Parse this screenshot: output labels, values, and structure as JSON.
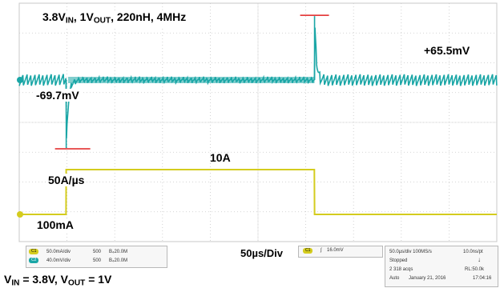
{
  "chart_data": {
    "type": "line",
    "title": "3.8VIN, 1VOUT, 220nH, 4MHz",
    "time_per_div_label": "50µs/Div",
    "x_unit": "µs",
    "x_range": [
      0,
      500
    ],
    "grid_divisions": {
      "x": 10,
      "y": 8
    },
    "series": [
      {
        "name": "C2",
        "color": "#1aa6a6",
        "description_points": [
          {
            "x": 0,
            "y": 0
          },
          {
            "x": 49,
            "y": 0
          },
          {
            "x": 49.5,
            "y": -69.7
          },
          {
            "x": 55,
            "y": -25
          },
          {
            "x": 60,
            "y": -5
          },
          {
            "x": 305,
            "y": -2
          },
          {
            "x": 311,
            "y": 65.5
          },
          {
            "x": 320,
            "y": 6
          },
          {
            "x": 500,
            "y": 0
          }
        ],
        "y_unit": "mV",
        "min_mV": -69.7,
        "max_mV": 65.5
      },
      {
        "name": "C1",
        "color": "#d4cc1e",
        "points": [
          {
            "x": 0,
            "y": 0.1
          },
          {
            "x": 49,
            "y": 0.1
          },
          {
            "x": 49.2,
            "y": 10
          },
          {
            "x": 309,
            "y": 10
          },
          {
            "x": 309.2,
            "y": 0.1
          },
          {
            "x": 500,
            "y": 0.1
          }
        ],
        "y_unit": "A",
        "low_A": 0.1,
        "high_A": 10,
        "slew_rate_A_per_us": 50
      }
    ],
    "annotations": {
      "title": "3.8VIN, 1VOUT, 220nH, 4MHz",
      "overshoot": "+65.5mV",
      "undershoot": "-69.7mV",
      "step_high": "10A",
      "slew": "50A/µs",
      "step_low": "100mA",
      "timebase": "50µs/Div",
      "conditions": "VIN = 3.8V, VOUT = 1V"
    }
  },
  "labels": {
    "title_parts": [
      "3.8V",
      "IN",
      ", 1V",
      "OUT",
      ", 220nH, 4MHz"
    ],
    "peak": "+65.5mV",
    "dip": "-69.7mV",
    "step_high": "10A",
    "slew": "50A/µs",
    "step_low": "100mA",
    "timebase": "50µs/Div",
    "cond_parts": [
      "V",
      "IN",
      " = 3.8V, V",
      "OUT",
      " = 1V"
    ]
  },
  "scope_status": {
    "ch1_chip": "C1",
    "ch1_scale": "50.0mA/div",
    "ch1_bw": "500",
    "ch1_coupling": "B₄20.0M",
    "ch2_chip": "C2",
    "ch2_scale": "40.0mV/div",
    "ch2_bw": "500",
    "ch2_coupling": "B₄20.0M",
    "trigger_chip": "C1",
    "trigger_level": "16.0mV",
    "acq_rate": "50.0µs/div  100MS/s",
    "record_interval": "10.0ns/pt",
    "state": "Stopped",
    "acqs": "2 318 acqs",
    "record_length": "RL:50.0k",
    "mode": "Auto",
    "date": "January 21, 2016",
    "time": "17:04:16"
  },
  "colors": {
    "ch2": "#1aa6a6",
    "ch1": "#d4cc1e",
    "marker": "#e02020",
    "grid": "#c8c8c8"
  }
}
